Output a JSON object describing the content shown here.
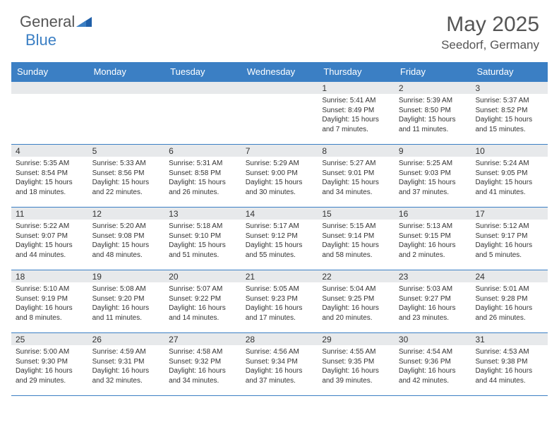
{
  "logo": {
    "word1": "General",
    "word2": "Blue"
  },
  "title": "May 2025",
  "location": "Seedorf, Germany",
  "colors": {
    "header_bg": "#3b7fc4",
    "daynum_bg": "#e7e9eb",
    "border": "#3b7fc4",
    "text": "#333333",
    "title_text": "#555555"
  },
  "day_headers": [
    "Sunday",
    "Monday",
    "Tuesday",
    "Wednesday",
    "Thursday",
    "Friday",
    "Saturday"
  ],
  "weeks": [
    [
      {
        "day": "",
        "sunrise": "",
        "sunset": "",
        "daylight": ""
      },
      {
        "day": "",
        "sunrise": "",
        "sunset": "",
        "daylight": ""
      },
      {
        "day": "",
        "sunrise": "",
        "sunset": "",
        "daylight": ""
      },
      {
        "day": "",
        "sunrise": "",
        "sunset": "",
        "daylight": ""
      },
      {
        "day": "1",
        "sunrise": "Sunrise: 5:41 AM",
        "sunset": "Sunset: 8:49 PM",
        "daylight": "Daylight: 15 hours and 7 minutes."
      },
      {
        "day": "2",
        "sunrise": "Sunrise: 5:39 AM",
        "sunset": "Sunset: 8:50 PM",
        "daylight": "Daylight: 15 hours and 11 minutes."
      },
      {
        "day": "3",
        "sunrise": "Sunrise: 5:37 AM",
        "sunset": "Sunset: 8:52 PM",
        "daylight": "Daylight: 15 hours and 15 minutes."
      }
    ],
    [
      {
        "day": "4",
        "sunrise": "Sunrise: 5:35 AM",
        "sunset": "Sunset: 8:54 PM",
        "daylight": "Daylight: 15 hours and 18 minutes."
      },
      {
        "day": "5",
        "sunrise": "Sunrise: 5:33 AM",
        "sunset": "Sunset: 8:56 PM",
        "daylight": "Daylight: 15 hours and 22 minutes."
      },
      {
        "day": "6",
        "sunrise": "Sunrise: 5:31 AM",
        "sunset": "Sunset: 8:58 PM",
        "daylight": "Daylight: 15 hours and 26 minutes."
      },
      {
        "day": "7",
        "sunrise": "Sunrise: 5:29 AM",
        "sunset": "Sunset: 9:00 PM",
        "daylight": "Daylight: 15 hours and 30 minutes."
      },
      {
        "day": "8",
        "sunrise": "Sunrise: 5:27 AM",
        "sunset": "Sunset: 9:01 PM",
        "daylight": "Daylight: 15 hours and 34 minutes."
      },
      {
        "day": "9",
        "sunrise": "Sunrise: 5:25 AM",
        "sunset": "Sunset: 9:03 PM",
        "daylight": "Daylight: 15 hours and 37 minutes."
      },
      {
        "day": "10",
        "sunrise": "Sunrise: 5:24 AM",
        "sunset": "Sunset: 9:05 PM",
        "daylight": "Daylight: 15 hours and 41 minutes."
      }
    ],
    [
      {
        "day": "11",
        "sunrise": "Sunrise: 5:22 AM",
        "sunset": "Sunset: 9:07 PM",
        "daylight": "Daylight: 15 hours and 44 minutes."
      },
      {
        "day": "12",
        "sunrise": "Sunrise: 5:20 AM",
        "sunset": "Sunset: 9:08 PM",
        "daylight": "Daylight: 15 hours and 48 minutes."
      },
      {
        "day": "13",
        "sunrise": "Sunrise: 5:18 AM",
        "sunset": "Sunset: 9:10 PM",
        "daylight": "Daylight: 15 hours and 51 minutes."
      },
      {
        "day": "14",
        "sunrise": "Sunrise: 5:17 AM",
        "sunset": "Sunset: 9:12 PM",
        "daylight": "Daylight: 15 hours and 55 minutes."
      },
      {
        "day": "15",
        "sunrise": "Sunrise: 5:15 AM",
        "sunset": "Sunset: 9:14 PM",
        "daylight": "Daylight: 15 hours and 58 minutes."
      },
      {
        "day": "16",
        "sunrise": "Sunrise: 5:13 AM",
        "sunset": "Sunset: 9:15 PM",
        "daylight": "Daylight: 16 hours and 2 minutes."
      },
      {
        "day": "17",
        "sunrise": "Sunrise: 5:12 AM",
        "sunset": "Sunset: 9:17 PM",
        "daylight": "Daylight: 16 hours and 5 minutes."
      }
    ],
    [
      {
        "day": "18",
        "sunrise": "Sunrise: 5:10 AM",
        "sunset": "Sunset: 9:19 PM",
        "daylight": "Daylight: 16 hours and 8 minutes."
      },
      {
        "day": "19",
        "sunrise": "Sunrise: 5:08 AM",
        "sunset": "Sunset: 9:20 PM",
        "daylight": "Daylight: 16 hours and 11 minutes."
      },
      {
        "day": "20",
        "sunrise": "Sunrise: 5:07 AM",
        "sunset": "Sunset: 9:22 PM",
        "daylight": "Daylight: 16 hours and 14 minutes."
      },
      {
        "day": "21",
        "sunrise": "Sunrise: 5:05 AM",
        "sunset": "Sunset: 9:23 PM",
        "daylight": "Daylight: 16 hours and 17 minutes."
      },
      {
        "day": "22",
        "sunrise": "Sunrise: 5:04 AM",
        "sunset": "Sunset: 9:25 PM",
        "daylight": "Daylight: 16 hours and 20 minutes."
      },
      {
        "day": "23",
        "sunrise": "Sunrise: 5:03 AM",
        "sunset": "Sunset: 9:27 PM",
        "daylight": "Daylight: 16 hours and 23 minutes."
      },
      {
        "day": "24",
        "sunrise": "Sunrise: 5:01 AM",
        "sunset": "Sunset: 9:28 PM",
        "daylight": "Daylight: 16 hours and 26 minutes."
      }
    ],
    [
      {
        "day": "25",
        "sunrise": "Sunrise: 5:00 AM",
        "sunset": "Sunset: 9:30 PM",
        "daylight": "Daylight: 16 hours and 29 minutes."
      },
      {
        "day": "26",
        "sunrise": "Sunrise: 4:59 AM",
        "sunset": "Sunset: 9:31 PM",
        "daylight": "Daylight: 16 hours and 32 minutes."
      },
      {
        "day": "27",
        "sunrise": "Sunrise: 4:58 AM",
        "sunset": "Sunset: 9:32 PM",
        "daylight": "Daylight: 16 hours and 34 minutes."
      },
      {
        "day": "28",
        "sunrise": "Sunrise: 4:56 AM",
        "sunset": "Sunset: 9:34 PM",
        "daylight": "Daylight: 16 hours and 37 minutes."
      },
      {
        "day": "29",
        "sunrise": "Sunrise: 4:55 AM",
        "sunset": "Sunset: 9:35 PM",
        "daylight": "Daylight: 16 hours and 39 minutes."
      },
      {
        "day": "30",
        "sunrise": "Sunrise: 4:54 AM",
        "sunset": "Sunset: 9:36 PM",
        "daylight": "Daylight: 16 hours and 42 minutes."
      },
      {
        "day": "31",
        "sunrise": "Sunrise: 4:53 AM",
        "sunset": "Sunset: 9:38 PM",
        "daylight": "Daylight: 16 hours and 44 minutes."
      }
    ]
  ]
}
